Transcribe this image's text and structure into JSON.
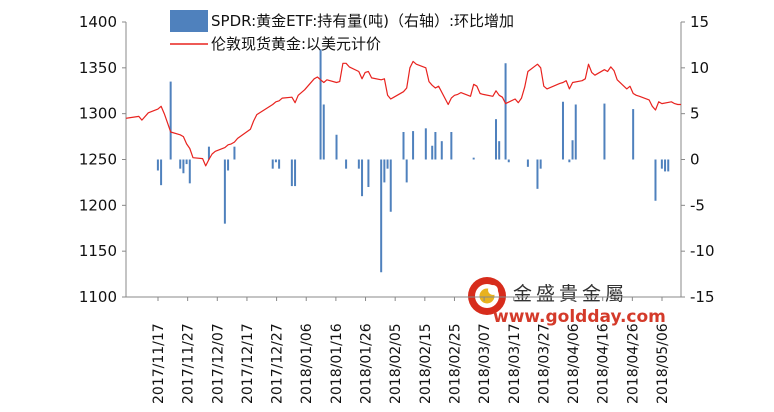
{
  "chart_data": {
    "type": "bar+line",
    "left_axis": {
      "ticks": [
        1100,
        1150,
        1200,
        1250,
        1300,
        1350,
        1400
      ],
      "range": [
        1100,
        1400
      ]
    },
    "right_axis": {
      "ticks": [
        -15,
        -10,
        -5,
        0,
        5,
        10,
        15
      ],
      "range": [
        -15,
        15
      ]
    },
    "x_date_range": [
      "2017-11-17",
      "2018-05-10"
    ],
    "x_tick_labels": [
      "2017/11/17",
      "2017/11/27",
      "2017/12/07",
      "2017/12/17",
      "2017/12/27",
      "2018/01/06",
      "2018/01/16",
      "2018/01/26",
      "2018/02/05",
      "2018/02/15",
      "2018/02/25",
      "2018/03/07",
      "2018/03/17",
      "2018/03/27",
      "2018/04/06",
      "2018/04/16",
      "2018/04/26",
      "2018/05/06"
    ],
    "series": [
      {
        "name": "SPDR:黄金ETF:持有量(吨)（右轴）:环比增加",
        "type": "bar",
        "axis": "right",
        "color": "#4f81bd",
        "points": [
          [
            "2017-11-27",
            -1.2
          ],
          [
            "2017-11-28",
            -2.8
          ],
          [
            "2017-12-01",
            8.5
          ],
          [
            "2017-12-04",
            -1.0
          ],
          [
            "2017-12-05",
            -1.5
          ],
          [
            "2017-12-06",
            -0.5
          ],
          [
            "2017-12-07",
            -2.6
          ],
          [
            "2017-12-13",
            1.4
          ],
          [
            "2017-12-18",
            -7.0
          ],
          [
            "2017-12-19",
            -1.2
          ],
          [
            "2017-12-21",
            1.4
          ],
          [
            "2018-01-02",
            -1.0
          ],
          [
            "2018-01-03",
            -0.3
          ],
          [
            "2018-01-04",
            -1.0
          ],
          [
            "2018-01-08",
            -2.9
          ],
          [
            "2018-01-09",
            -2.9
          ],
          [
            "2018-01-17",
            12.0
          ],
          [
            "2018-01-18",
            6.0
          ],
          [
            "2018-01-22",
            2.7
          ],
          [
            "2018-01-25",
            -1.0
          ],
          [
            "2018-01-29",
            -1.0
          ],
          [
            "2018-01-30",
            -4.0
          ],
          [
            "2018-02-01",
            -3.0
          ],
          [
            "2018-02-05",
            -12.3
          ],
          [
            "2018-02-06",
            -2.5
          ],
          [
            "2018-02-07",
            -1.0
          ],
          [
            "2018-02-08",
            -5.7
          ],
          [
            "2018-02-12",
            3.0
          ],
          [
            "2018-02-13",
            -2.5
          ],
          [
            "2018-02-15",
            3.1
          ],
          [
            "2018-02-19",
            3.4
          ],
          [
            "2018-02-21",
            1.5
          ],
          [
            "2018-02-22",
            3.0
          ],
          [
            "2018-02-24",
            2.0
          ],
          [
            "2018-02-27",
            3.0
          ],
          [
            "2018-03-06",
            0.2
          ],
          [
            "2018-03-13",
            4.4
          ],
          [
            "2018-03-14",
            2.0
          ],
          [
            "2018-03-16",
            10.5
          ],
          [
            "2018-03-17",
            -0.3
          ],
          [
            "2018-03-23",
            -0.8
          ],
          [
            "2018-03-26",
            -3.2
          ],
          [
            "2018-03-27",
            -1.0
          ],
          [
            "2018-04-03",
            6.3
          ],
          [
            "2018-04-05",
            -0.3
          ],
          [
            "2018-04-06",
            2.1
          ],
          [
            "2018-04-07",
            6.0
          ],
          [
            "2018-04-16",
            6.1
          ],
          [
            "2018-04-25",
            5.5
          ],
          [
            "2018-05-02",
            -4.5
          ],
          [
            "2018-05-04",
            -1.0
          ],
          [
            "2018-05-05",
            -1.3
          ],
          [
            "2018-05-06",
            -1.3
          ]
        ]
      },
      {
        "name": "伦敦现货黄金:以美元计价",
        "type": "line",
        "axis": "left",
        "color": "#e8231f",
        "points": [
          [
            "2017-11-17",
            1295
          ],
          [
            "2017-11-21",
            1297
          ],
          [
            "2017-11-22",
            1293
          ],
          [
            "2017-11-24",
            1301
          ],
          [
            "2017-11-27",
            1305
          ],
          [
            "2017-11-28",
            1308
          ],
          [
            "2017-11-29",
            1300
          ],
          [
            "2017-11-30",
            1290
          ],
          [
            "2017-12-01",
            1280
          ],
          [
            "2017-12-04",
            1277
          ],
          [
            "2017-12-05",
            1275
          ],
          [
            "2017-12-06",
            1267
          ],
          [
            "2017-12-07",
            1262
          ],
          [
            "2017-12-08",
            1252
          ],
          [
            "2017-12-11",
            1251
          ],
          [
            "2017-12-12",
            1243
          ],
          [
            "2017-12-13",
            1250
          ],
          [
            "2017-12-14",
            1256
          ],
          [
            "2017-12-15",
            1259
          ],
          [
            "2017-12-18",
            1263
          ],
          [
            "2017-12-19",
            1266
          ],
          [
            "2017-12-20",
            1267
          ],
          [
            "2017-12-21",
            1269
          ],
          [
            "2017-12-22",
            1273
          ],
          [
            "2017-12-26",
            1283
          ],
          [
            "2017-12-27",
            1292
          ],
          [
            "2017-12-28",
            1299
          ],
          [
            "2018-01-02",
            1310
          ],
          [
            "2018-01-03",
            1313
          ],
          [
            "2018-01-04",
            1314
          ],
          [
            "2018-01-05",
            1317
          ],
          [
            "2018-01-08",
            1318
          ],
          [
            "2018-01-09",
            1312
          ],
          [
            "2018-01-10",
            1320
          ],
          [
            "2018-01-12",
            1326
          ],
          [
            "2018-01-15",
            1338
          ],
          [
            "2018-01-16",
            1340
          ],
          [
            "2018-01-17",
            1337
          ],
          [
            "2018-01-18",
            1334
          ],
          [
            "2018-01-19",
            1337
          ],
          [
            "2018-01-22",
            1334
          ],
          [
            "2018-01-23",
            1335
          ],
          [
            "2018-01-24",
            1355
          ],
          [
            "2018-01-25",
            1355
          ],
          [
            "2018-01-26",
            1351
          ],
          [
            "2018-01-29",
            1346
          ],
          [
            "2018-01-30",
            1338
          ],
          [
            "2018-01-31",
            1345
          ],
          [
            "2018-02-01",
            1346
          ],
          [
            "2018-02-02",
            1339
          ],
          [
            "2018-02-05",
            1337
          ],
          [
            "2018-02-06",
            1338
          ],
          [
            "2018-02-07",
            1320
          ],
          [
            "2018-02-08",
            1316
          ],
          [
            "2018-02-09",
            1318
          ],
          [
            "2018-02-12",
            1324
          ],
          [
            "2018-02-13",
            1328
          ],
          [
            "2018-02-14",
            1350
          ],
          [
            "2018-02-15",
            1357
          ],
          [
            "2018-02-16",
            1354
          ],
          [
            "2018-02-19",
            1350
          ],
          [
            "2018-02-20",
            1335
          ],
          [
            "2018-02-21",
            1331
          ],
          [
            "2018-02-22",
            1328
          ],
          [
            "2018-02-23",
            1330
          ],
          [
            "2018-02-26",
            1310
          ],
          [
            "2018-02-27",
            1317
          ],
          [
            "2018-02-28",
            1320
          ],
          [
            "2018-03-01",
            1321
          ],
          [
            "2018-03-02",
            1323
          ],
          [
            "2018-03-05",
            1319
          ],
          [
            "2018-03-06",
            1332
          ],
          [
            "2018-03-07",
            1330
          ],
          [
            "2018-03-08",
            1322
          ],
          [
            "2018-03-09",
            1321
          ],
          [
            "2018-03-12",
            1319
          ],
          [
            "2018-03-13",
            1325
          ],
          [
            "2018-03-14",
            1320
          ],
          [
            "2018-03-15",
            1318
          ],
          [
            "2018-03-16",
            1311
          ],
          [
            "2018-03-19",
            1316
          ],
          [
            "2018-03-20",
            1312
          ],
          [
            "2018-03-21",
            1317
          ],
          [
            "2018-03-22",
            1329
          ],
          [
            "2018-03-23",
            1346
          ],
          [
            "2018-03-26",
            1354
          ],
          [
            "2018-03-27",
            1350
          ],
          [
            "2018-03-28",
            1330
          ],
          [
            "2018-03-29",
            1327
          ],
          [
            "2018-04-02",
            1333
          ],
          [
            "2018-04-03",
            1334
          ],
          [
            "2018-04-04",
            1336
          ],
          [
            "2018-04-05",
            1327
          ],
          [
            "2018-04-06",
            1334
          ],
          [
            "2018-04-09",
            1336
          ],
          [
            "2018-04-10",
            1338
          ],
          [
            "2018-04-11",
            1354
          ],
          [
            "2018-04-12",
            1345
          ],
          [
            "2018-04-13",
            1342
          ],
          [
            "2018-04-16",
            1348
          ],
          [
            "2018-04-17",
            1346
          ],
          [
            "2018-04-18",
            1351
          ],
          [
            "2018-04-19",
            1347
          ],
          [
            "2018-04-20",
            1337
          ],
          [
            "2018-04-23",
            1327
          ],
          [
            "2018-04-24",
            1330
          ],
          [
            "2018-04-25",
            1322
          ],
          [
            "2018-04-26",
            1320
          ],
          [
            "2018-04-27",
            1319
          ],
          [
            "2018-04-30",
            1315
          ],
          [
            "2018-05-01",
            1308
          ],
          [
            "2018-05-02",
            1304
          ],
          [
            "2018-05-03",
            1313
          ],
          [
            "2018-05-04",
            1311
          ],
          [
            "2018-05-07",
            1313
          ],
          [
            "2018-05-08",
            1311
          ],
          [
            "2018-05-09",
            1310
          ],
          [
            "2018-05-10",
            1310
          ]
        ]
      }
    ],
    "legend": {
      "position": "top-center"
    },
    "grid": false
  },
  "watermark": {
    "company": "金盛貴金屬",
    "url": "www.goldday.com"
  }
}
